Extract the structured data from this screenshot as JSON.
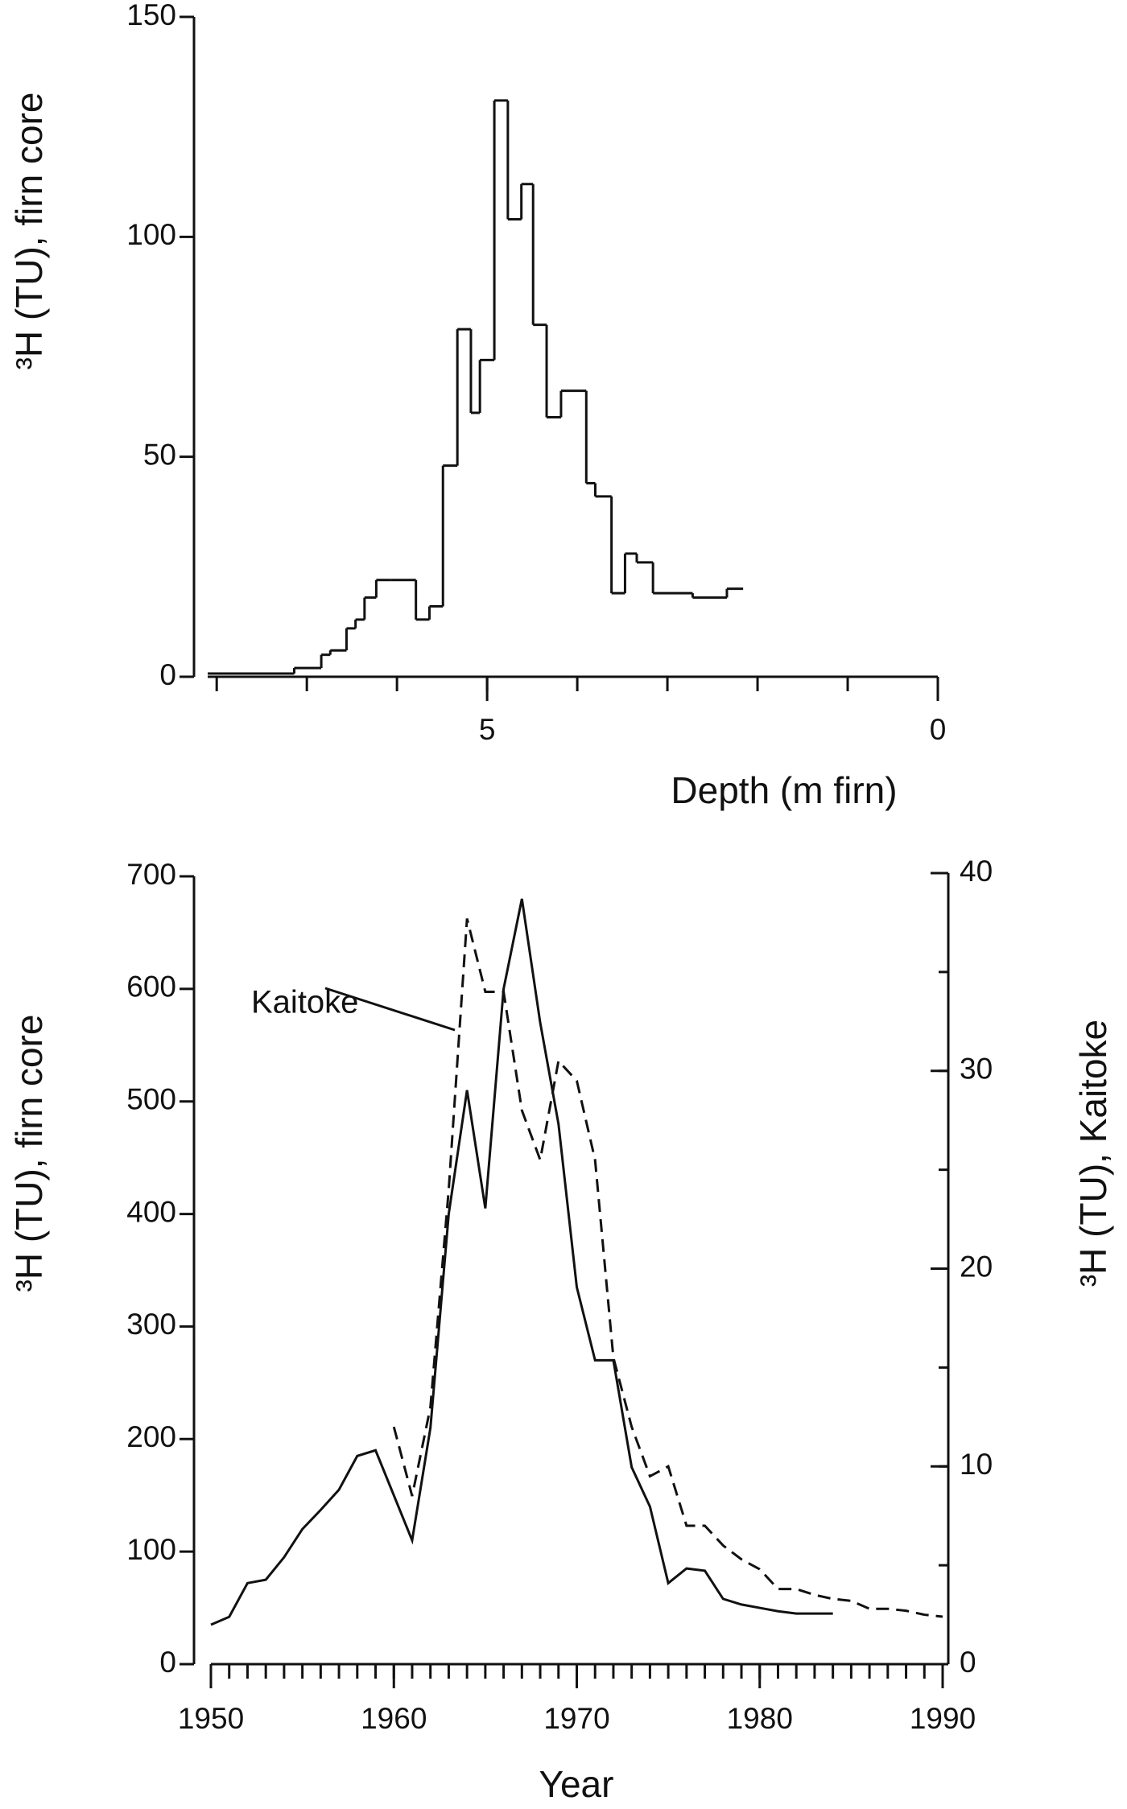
{
  "chart_data": [
    {
      "type": "histogram",
      "xlabel": "Depth (m firn)",
      "ylabel": "³H (TU), firn core",
      "bins": [
        7.14,
        6.84,
        6.74,
        6.56,
        6.46,
        6.36,
        6.23,
        6.07,
        5.79,
        5.64,
        5.49,
        5.33,
        5.18,
        5.08,
        4.92,
        4.77,
        4.62,
        4.49,
        4.34,
        4.18,
        3.9,
        3.8,
        3.62,
        3.47,
        3.34,
        3.16,
        2.72,
        2.34,
        2.16
      ],
      "values": [
        2,
        5,
        6,
        11,
        13,
        18,
        22,
        22,
        13,
        16,
        48,
        79,
        60,
        72,
        131,
        104,
        112,
        80,
        59,
        65,
        44,
        41,
        19,
        28,
        26,
        19,
        18,
        20
      ],
      "color": "#111111",
      "xlim": [
        8.1,
        0
      ],
      "xticks": [
        5,
        0
      ],
      "xminor_interval": 1,
      "ylim": [
        0,
        150
      ],
      "yticks": [
        0,
        50,
        100,
        150
      ]
    },
    {
      "type": "line",
      "xlabel": "Year",
      "ylabel": "³H (TU), firn core",
      "y2label": "³H (TU), Kaitoke",
      "annotation": "Kaitoke",
      "x": [
        1950,
        1951,
        1952,
        1953,
        1954,
        1955,
        1956,
        1957,
        1958,
        1959,
        1960,
        1961,
        1962,
        1963,
        1964,
        1965,
        1966,
        1967,
        1968,
        1969,
        1970,
        1971,
        1972,
        1973,
        1974,
        1975,
        1976,
        1977,
        1978,
        1979,
        1980,
        1981,
        1982,
        1983,
        1984,
        1985,
        1986,
        1987,
        1988,
        1989,
        1990
      ],
      "series": [
        {
          "name": "firn core",
          "color": "#111111",
          "dash": false,
          "values": [
            35,
            42,
            72,
            75,
            95,
            120,
            137,
            155,
            185,
            190,
            150,
            110,
            210,
            400,
            510,
            405,
            600,
            680,
            570,
            480,
            335,
            270,
            270,
            175,
            140,
            72,
            85,
            83,
            58,
            53,
            50,
            47,
            45,
            45,
            45,
            null,
            null,
            null,
            null,
            null,
            null
          ]
        },
        {
          "name": "Kaitoke",
          "color": "#111111",
          "dash": true,
          "axis": "y2",
          "values": [
            null,
            null,
            null,
            null,
            null,
            null,
            null,
            null,
            null,
            null,
            12,
            8.5,
            13,
            24,
            37.7,
            34,
            34,
            28,
            25.5,
            30.5,
            29.5,
            25.5,
            15.5,
            12,
            9.5,
            10,
            7,
            7,
            6,
            5.3,
            4.8,
            3.8,
            3.8,
            3.5,
            3.3,
            3.2,
            2.8,
            2.8,
            2.7,
            2.5,
            2.4
          ]
        }
      ],
      "xlim": [
        1950,
        1990
      ],
      "xticks": [
        1950,
        1960,
        1970,
        1980,
        1990
      ],
      "xminor_interval": 1,
      "ylim": [
        0,
        700
      ],
      "yticks": [
        0,
        100,
        200,
        300,
        400,
        500,
        600,
        700
      ],
      "y2lim": [
        0,
        40
      ],
      "y2ticks": [
        0,
        10,
        20,
        30,
        40
      ],
      "y2minor_interval": 5
    }
  ]
}
